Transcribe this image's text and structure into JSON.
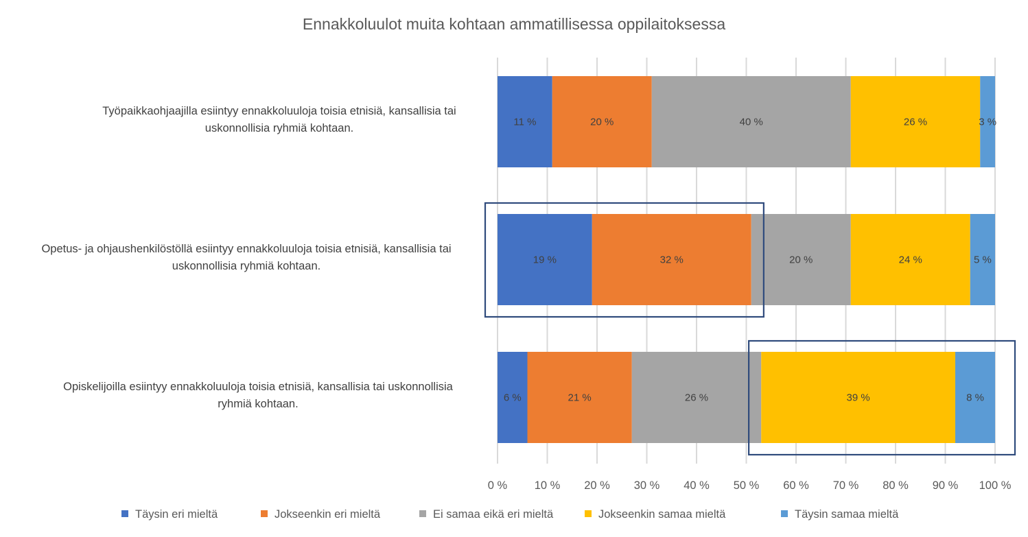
{
  "chart_data": {
    "type": "bar",
    "orientation": "horizontal",
    "stacked": "100%",
    "title": "Ennakkoluulot muita kohtaan ammatillisessa oppilaitoksessa",
    "xlabel": "",
    "ylabel": "",
    "xlim": [
      0,
      100
    ],
    "x_ticks": [
      "0 %",
      "10 %",
      "20 %",
      "30 %",
      "40 %",
      "50 %",
      "60 %",
      "70 %",
      "80 %",
      "90 %",
      "100 %"
    ],
    "grid": "vertical",
    "legend_position": "bottom",
    "categories": [
      [
        "Työpaikkaohjaajilla esiintyy ennakkoluuloja toisia etnisiä, kansallisia tai",
        "uskonnollisia ryhmiä kohtaan."
      ],
      [
        "Opetus- ja ohjaushenkilöstöllä esiintyy ennakkoluuloja toisia etnisiä, kansallisia tai",
        "uskonnollisia ryhmiä kohtaan."
      ],
      [
        "Opiskelijoilla esiintyy ennakkoluuloja toisia etnisiä, kansallisia tai uskonnollisia",
        "ryhmiä kohtaan."
      ]
    ],
    "series": [
      {
        "name": "Täysin eri mieltä",
        "color": "#4472c4",
        "values": [
          11,
          19,
          6
        ],
        "labels": [
          "11 %",
          "19 %",
          "6 %"
        ]
      },
      {
        "name": "Jokseenkin eri mieltä",
        "color": "#ed7d31",
        "values": [
          20,
          32,
          21
        ],
        "labels": [
          "20 %",
          "32 %",
          "21 %"
        ]
      },
      {
        "name": "Ei samaa eikä eri mieltä",
        "color": "#a5a5a5",
        "values": [
          40,
          20,
          26
        ],
        "labels": [
          "40 %",
          "20 %",
          "26 %"
        ]
      },
      {
        "name": "Jokseenkin samaa mieltä",
        "color": "#ffc000",
        "values": [
          26,
          24,
          39
        ],
        "labels": [
          "26 %",
          "24 %",
          "39 %"
        ]
      },
      {
        "name": "Täysin samaa mieltä",
        "color": "#5b9bd5",
        "values": [
          3,
          5,
          8
        ],
        "labels": [
          "3 %",
          "5 %",
          "8 %"
        ]
      }
    ],
    "annotations": [
      {
        "type": "highlight-box",
        "category_index": 1,
        "from": 0,
        "to": 53.5,
        "description": "Highlights disagreement (Täysin eri + Jokseenkin eri mieltä) for Opetus- ja ohjaushenkilöstö"
      },
      {
        "type": "highlight-box",
        "category_index": 2,
        "from": 50.5,
        "to": 104,
        "description": "Highlights agreement (Jokseenkin samaa + Täysin samaa mieltä) for Opiskelijat"
      }
    ]
  }
}
